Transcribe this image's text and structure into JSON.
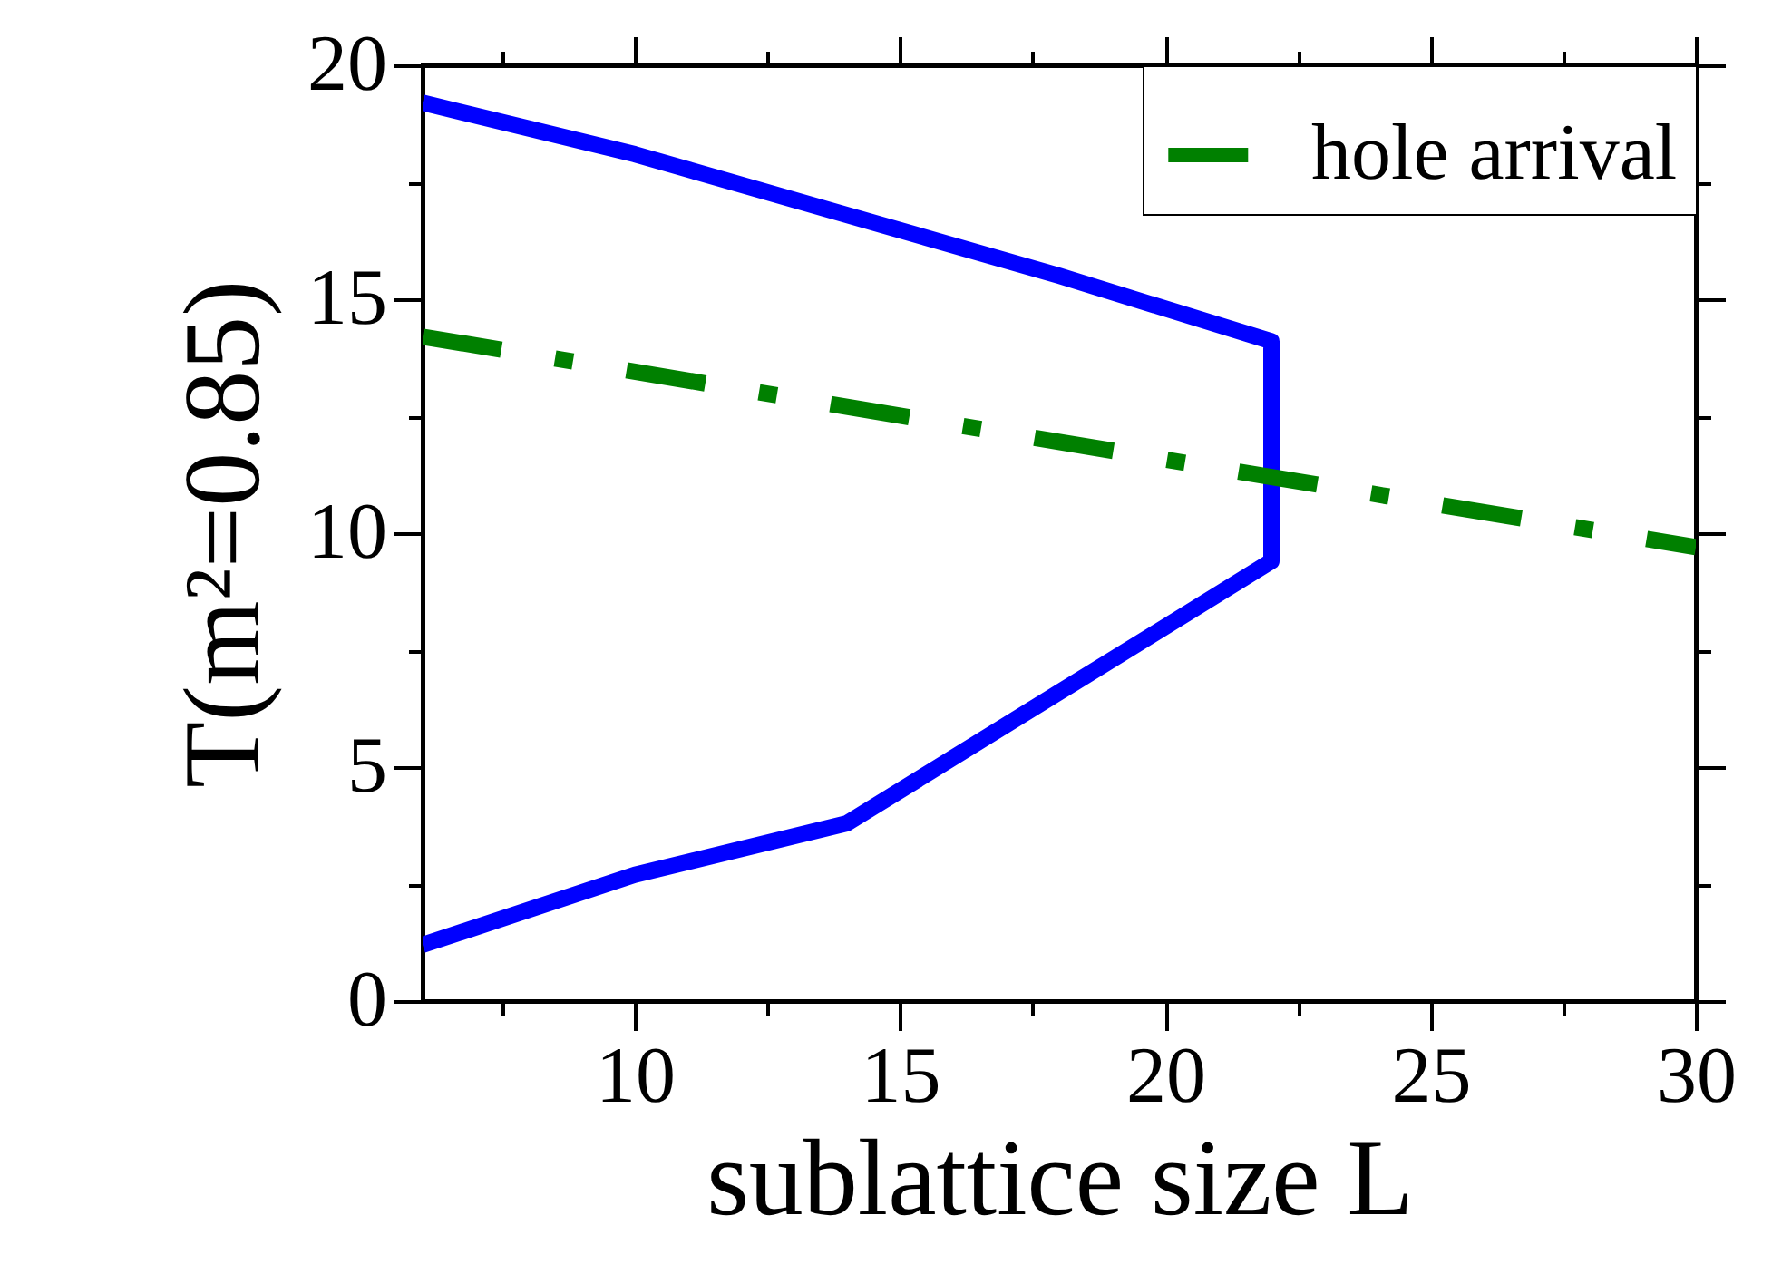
{
  "chart_data": {
    "type": "line",
    "xlabel": "sublattice size L",
    "ylabel": "T(m²=0.85)",
    "xlim": [
      6,
      30
    ],
    "ylim": [
      0,
      20
    ],
    "xticks": [
      {
        "value": 7.5,
        "label": null
      },
      10,
      {
        "value": 12.5,
        "label": null
      },
      15,
      {
        "value": 17.5,
        "label": null
      },
      20,
      {
        "value": 22.5,
        "label": null
      },
      25,
      {
        "value": 27.5,
        "label": null
      },
      30
    ],
    "yticks": [
      0,
      {
        "value": 2.5,
        "label": null
      },
      5,
      {
        "value": 7.5,
        "label": null
      },
      10,
      {
        "value": 12.5,
        "label": null
      },
      15,
      {
        "value": 17.5,
        "label": null
      },
      20
    ],
    "legend": "top right",
    "grid": false,
    "series": [
      {
        "color": "#0000ff",
        "line_style": "solid",
        "x": [
          6,
          10,
          14,
          18,
          22,
          22,
          18,
          14,
          10,
          6
        ],
        "values": [
          19.2,
          18.1,
          16.8,
          15.5,
          14.1,
          9.4,
          6.6,
          3.8,
          2.7,
          1.2
        ]
      },
      {
        "name": "hole arrival",
        "color": "#008000",
        "line_style": "dashed",
        "x": [
          6,
          30
        ],
        "values": [
          14.2,
          9.7
        ]
      }
    ]
  }
}
